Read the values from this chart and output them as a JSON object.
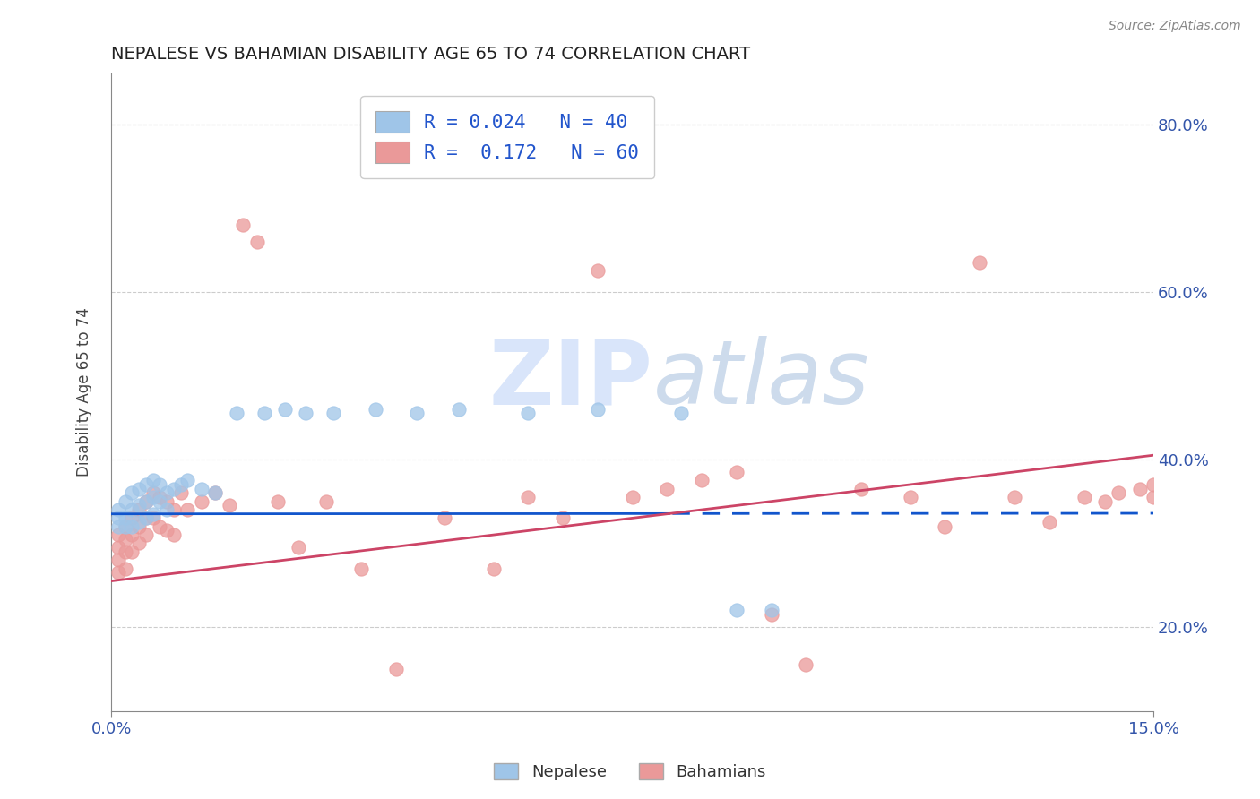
{
  "title": "NEPALESE VS BAHAMIAN DISABILITY AGE 65 TO 74 CORRELATION CHART",
  "source_text": "Source: ZipAtlas.com",
  "xlim": [
    0.0,
    0.15
  ],
  "ylim": [
    0.1,
    0.86
  ],
  "y_ticks": [
    0.2,
    0.4,
    0.6,
    0.8
  ],
  "y_tick_labels": [
    "20.0%",
    "40.0%",
    "60.0%",
    "80.0%"
  ],
  "x_only_labels": [
    "0.0%",
    "15.0%"
  ],
  "legend_r_blue": "0.024",
  "legend_n_blue": "40",
  "legend_r_pink": "0.172",
  "legend_n_pink": "60",
  "blue_scatter_color": "#9fc5e8",
  "pink_scatter_color": "#ea9999",
  "blue_line_color": "#1155cc",
  "pink_line_color": "#cc4466",
  "watermark_color": "#c9daf8",
  "blue_intercept": 0.335,
  "blue_slope": 0.005,
  "pink_intercept": 0.255,
  "pink_slope": 1.0,
  "nepalese_x": [
    0.001,
    0.001,
    0.001,
    0.002,
    0.002,
    0.002,
    0.003,
    0.003,
    0.003,
    0.004,
    0.004,
    0.004,
    0.005,
    0.005,
    0.005,
    0.006,
    0.006,
    0.006,
    0.007,
    0.007,
    0.008,
    0.008,
    0.009,
    0.01,
    0.011,
    0.013,
    0.015,
    0.018,
    0.022,
    0.025,
    0.028,
    0.032,
    0.038,
    0.044,
    0.05,
    0.06,
    0.07,
    0.082,
    0.09,
    0.095
  ],
  "nepalese_y": [
    0.34,
    0.33,
    0.32,
    0.35,
    0.33,
    0.32,
    0.36,
    0.34,
    0.32,
    0.365,
    0.345,
    0.325,
    0.37,
    0.35,
    0.33,
    0.375,
    0.355,
    0.335,
    0.37,
    0.35,
    0.36,
    0.34,
    0.365,
    0.37,
    0.375,
    0.365,
    0.36,
    0.455,
    0.455,
    0.46,
    0.455,
    0.455,
    0.46,
    0.455,
    0.46,
    0.455,
    0.46,
    0.455,
    0.22,
    0.22
  ],
  "bahamian_x": [
    0.001,
    0.001,
    0.001,
    0.001,
    0.002,
    0.002,
    0.002,
    0.002,
    0.003,
    0.003,
    0.003,
    0.004,
    0.004,
    0.004,
    0.005,
    0.005,
    0.005,
    0.006,
    0.006,
    0.007,
    0.007,
    0.008,
    0.008,
    0.009,
    0.009,
    0.01,
    0.011,
    0.013,
    0.015,
    0.017,
    0.019,
    0.021,
    0.024,
    0.027,
    0.031,
    0.036,
    0.041,
    0.048,
    0.055,
    0.06,
    0.065,
    0.07,
    0.075,
    0.08,
    0.085,
    0.09,
    0.095,
    0.1,
    0.108,
    0.115,
    0.12,
    0.125,
    0.13,
    0.135,
    0.14,
    0.143,
    0.145,
    0.148,
    0.15,
    0.15
  ],
  "bahamian_y": [
    0.31,
    0.295,
    0.28,
    0.265,
    0.32,
    0.305,
    0.29,
    0.27,
    0.33,
    0.31,
    0.29,
    0.34,
    0.32,
    0.3,
    0.35,
    0.33,
    0.31,
    0.36,
    0.33,
    0.355,
    0.32,
    0.35,
    0.315,
    0.34,
    0.31,
    0.36,
    0.34,
    0.35,
    0.36,
    0.345,
    0.68,
    0.66,
    0.35,
    0.295,
    0.35,
    0.27,
    0.15,
    0.33,
    0.27,
    0.355,
    0.33,
    0.625,
    0.355,
    0.365,
    0.375,
    0.385,
    0.215,
    0.155,
    0.365,
    0.355,
    0.32,
    0.635,
    0.355,
    0.325,
    0.355,
    0.35,
    0.36,
    0.365,
    0.355,
    0.37
  ]
}
